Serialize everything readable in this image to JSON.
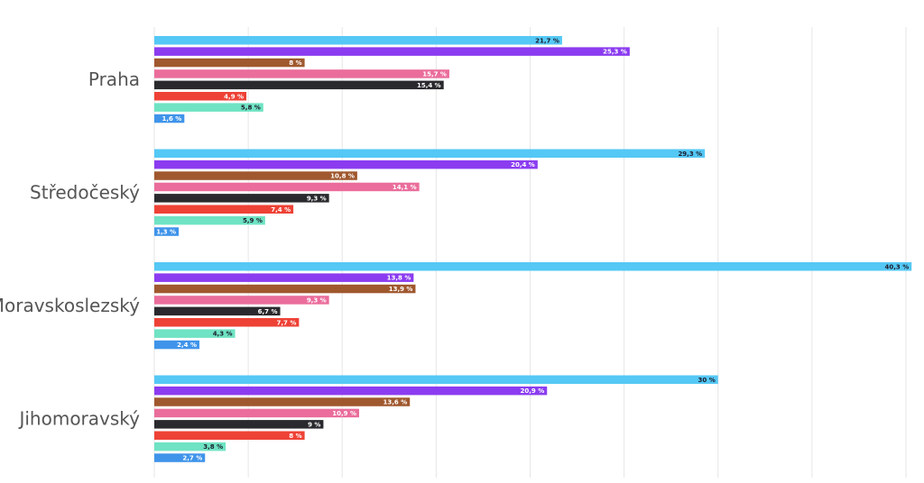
{
  "chart_data": {
    "type": "bar",
    "orientation": "horizontal",
    "grid": true,
    "xlim": [
      0,
      40
    ],
    "categories": [
      "Praha",
      "Středočeský",
      "Moravskoslezský",
      "Jihomoravský"
    ],
    "series": [
      {
        "color": "#55c8f5",
        "values": [
          21.7,
          29.3,
          40.3,
          30
        ],
        "labels": [
          "21,7 %",
          "29,3 %",
          "40,3 %",
          "30 %"
        ],
        "label_color": "#1b1b2a"
      },
      {
        "color": "#8b3cf0",
        "values": [
          25.3,
          20.4,
          13.8,
          20.9
        ],
        "labels": [
          "25,3 %",
          "20,4 %",
          "13,8 %",
          "20,9 %"
        ],
        "label_color": "#ffffff"
      },
      {
        "color": "#a0582e",
        "values": [
          8,
          10.8,
          13.9,
          13.6
        ],
        "labels": [
          "8 %",
          "10,8 %",
          "13,9 %",
          "13,6 %"
        ],
        "label_color": "#ffffff"
      },
      {
        "color": "#ea6d9b",
        "values": [
          15.7,
          14.1,
          9.3,
          10.9
        ],
        "labels": [
          "15,7 %",
          "14,1 %",
          "9,3 %",
          "10,9 %"
        ],
        "label_color": "#ffffff"
      },
      {
        "color": "#2a2a2e",
        "values": [
          15.4,
          9.3,
          6.7,
          9
        ],
        "labels": [
          "15,4 %",
          "9,3 %",
          "6,7 %",
          "9 %"
        ],
        "label_color": "#ffffff"
      },
      {
        "color": "#ee4236",
        "values": [
          4.9,
          7.4,
          7.7,
          8
        ],
        "labels": [
          "4,9 %",
          "7,4 %",
          "7,7 %",
          "8 %"
        ],
        "label_color": "#ffffff"
      },
      {
        "color": "#6fe3c3",
        "values": [
          5.8,
          5.9,
          4.3,
          3.8
        ],
        "labels": [
          "5,8 %",
          "5,9 %",
          "4,3 %",
          "3,8 %"
        ],
        "label_color": "#1b1b2a"
      },
      {
        "color": "#3f94ea",
        "values": [
          1.6,
          1.3,
          2.4,
          2.7
        ],
        "labels": [
          "1,6 %",
          "1,3 %",
          "2,4 %",
          "2,7 %"
        ],
        "label_color": "#ffffff"
      }
    ]
  }
}
